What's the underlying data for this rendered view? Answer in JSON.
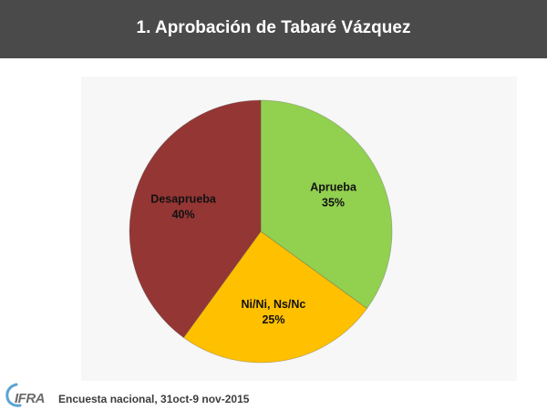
{
  "header": {
    "title": "1. Aprobación de Tabaré Vázquez"
  },
  "chart_data": {
    "type": "pie",
    "title": "",
    "slices": [
      {
        "label": "Aprueba",
        "value": 35,
        "value_label": "35%",
        "color": "#92d050"
      },
      {
        "label": "Ni/Ni, Ns/Nc",
        "value": 25,
        "value_label": "25%",
        "color": "#ffc000"
      },
      {
        "label": "Desaprueba",
        "value": 40,
        "value_label": "40%",
        "color": "#943634"
      }
    ],
    "start": "12 o'clock",
    "direction": "clockwise",
    "legend": "none"
  },
  "footer": {
    "logo_text": "CIFRA",
    "note": "Encuesta nacional,  31oct-9 nov-2015"
  }
}
